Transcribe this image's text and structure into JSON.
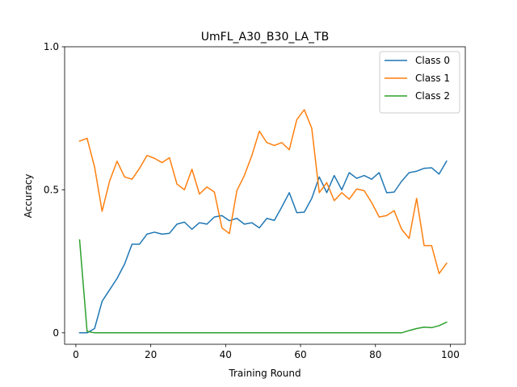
{
  "chart_data": {
    "type": "line",
    "title": "UmFL_A30_B30_LA_TB",
    "xlabel": "Training Round",
    "ylabel": "Accuracy",
    "xlim": [
      -3,
      104
    ],
    "ylim": [
      -0.04,
      1.0
    ],
    "x_ticks": [
      0,
      20,
      40,
      60,
      80,
      100
    ],
    "y_ticks": [
      {
        "value": 0,
        "label": "0"
      },
      {
        "value": 0.5,
        "label": "0.5"
      },
      {
        "value": 1.0,
        "label": "1.0"
      }
    ],
    "grid": false,
    "legend_position": "top-right",
    "x": [
      1,
      3,
      5,
      7,
      9,
      11,
      13,
      15,
      17,
      19,
      21,
      23,
      25,
      27,
      29,
      31,
      33,
      35,
      37,
      39,
      41,
      43,
      45,
      47,
      49,
      51,
      53,
      55,
      57,
      59,
      61,
      63,
      65,
      67,
      69,
      71,
      73,
      75,
      77,
      79,
      81,
      83,
      85,
      87,
      89,
      91,
      93,
      95,
      97,
      99
    ],
    "series": [
      {
        "name": "Class 0",
        "color": "#1f77b4",
        "values": [
          0.0,
          0.0,
          0.015,
          0.11,
          0.15,
          0.19,
          0.24,
          0.31,
          0.31,
          0.345,
          0.352,
          0.345,
          0.348,
          0.38,
          0.387,
          0.362,
          0.385,
          0.38,
          0.405,
          0.41,
          0.392,
          0.4,
          0.38,
          0.385,
          0.367,
          0.4,
          0.393,
          0.44,
          0.49,
          0.42,
          0.422,
          0.47,
          0.545,
          0.49,
          0.55,
          0.5,
          0.56,
          0.54,
          0.55,
          0.537,
          0.56,
          0.49,
          0.492,
          0.53,
          0.56,
          0.565,
          0.575,
          0.577,
          0.555,
          0.6
        ]
      },
      {
        "name": "Class 1",
        "color": "#ff7f0e",
        "values": [
          0.67,
          0.68,
          0.58,
          0.425,
          0.53,
          0.6,
          0.545,
          0.537,
          0.575,
          0.62,
          0.61,
          0.595,
          0.612,
          0.52,
          0.5,
          0.572,
          0.485,
          0.51,
          0.492,
          0.367,
          0.347,
          0.497,
          0.55,
          0.62,
          0.705,
          0.665,
          0.655,
          0.665,
          0.64,
          0.745,
          0.78,
          0.715,
          0.49,
          0.525,
          0.462,
          0.49,
          0.467,
          0.503,
          0.497,
          0.455,
          0.405,
          0.41,
          0.427,
          0.362,
          0.33,
          0.47,
          0.305,
          0.305,
          0.207,
          0.243
        ]
      },
      {
        "name": "Class 2",
        "color": "#2ca02c",
        "values": [
          0.325,
          0.005,
          0.0,
          0.0,
          0.0,
          0.0,
          0.0,
          0.0,
          0.0,
          0.0,
          0.0,
          0.0,
          0.0,
          0.0,
          0.0,
          0.0,
          0.0,
          0.0,
          0.0,
          0.0,
          0.0,
          0.0,
          0.0,
          0.0,
          0.0,
          0.0,
          0.0,
          0.0,
          0.0,
          0.0,
          0.0,
          0.0,
          0.0,
          0.0,
          0.0,
          0.0,
          0.0,
          0.0,
          0.0,
          0.0,
          0.0,
          0.0,
          0.0,
          0.0,
          0.008,
          0.015,
          0.02,
          0.018,
          0.025,
          0.037
        ]
      }
    ]
  }
}
